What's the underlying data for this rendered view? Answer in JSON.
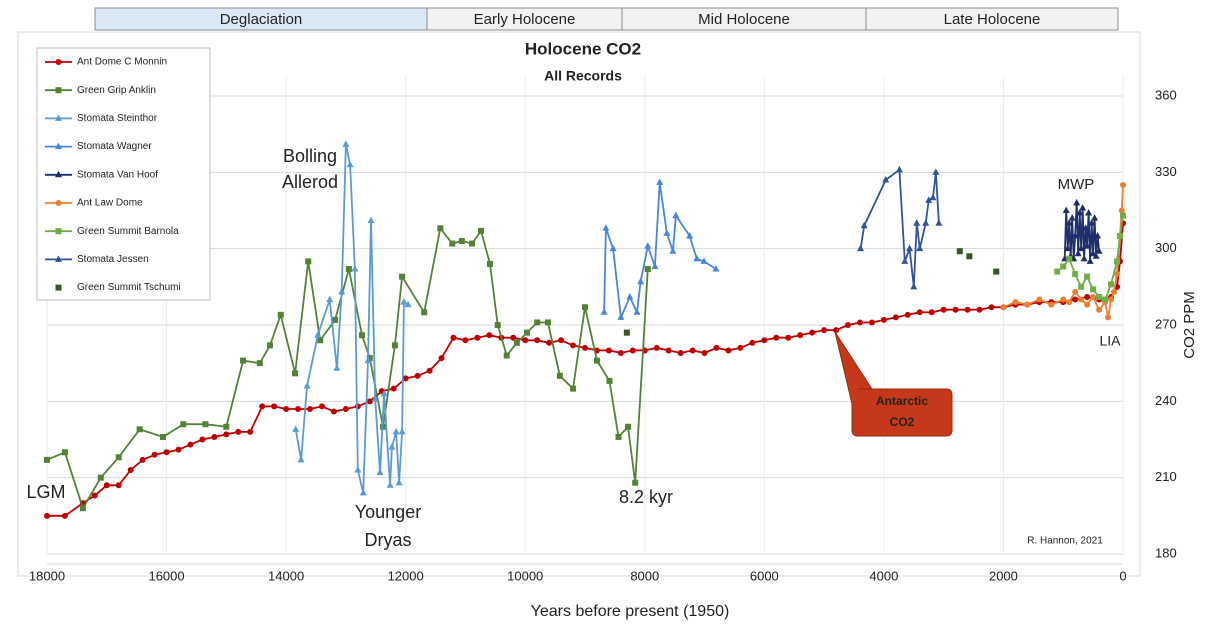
{
  "chart_data": {
    "type": "line",
    "title": "Holocene CO2",
    "subtitle": "All Records",
    "periods": [
      "Deglaciation",
      "Early Holocene",
      "Mid Holocene",
      "Late Holocene"
    ],
    "x_label": "Years before present (1950)",
    "y_label": "CO2 PPM",
    "xlim": [
      18000,
      0
    ],
    "xticks": [
      18000,
      16000,
      14000,
      12000,
      10000,
      8000,
      6000,
      4000,
      2000,
      0
    ],
    "ylim": [
      180,
      360
    ],
    "yticks": [
      180,
      210,
      240,
      270,
      300,
      330,
      360
    ],
    "grid": true,
    "legend": "upper left",
    "annotations": [
      {
        "lines": [
          "Bolling",
          "Allerod"
        ]
      },
      {
        "lines": [
          "LGM"
        ]
      },
      {
        "lines": [
          "Younger",
          "Dryas"
        ]
      },
      {
        "lines": [
          "8.2 kyr"
        ]
      },
      {
        "lines": [
          "MWP"
        ]
      },
      {
        "lines": [
          "LIA"
        ]
      },
      {
        "lines": [
          "Antarctic",
          "CO2"
        ]
      },
      {
        "lines": [
          "R. Hannon, 2021"
        ]
      }
    ],
    "series": [
      {
        "name": "Ant Dome C Monnin",
        "color": "#c00000",
        "marker": "circle",
        "line": true,
        "x": [
          18000,
          17700,
          17400,
          17200,
          17000,
          16800,
          16600,
          16400,
          16200,
          16000,
          15800,
          15600,
          15400,
          15200,
          15000,
          14800,
          14600,
          14400,
          14200,
          14000,
          13800,
          13600,
          13400,
          13200,
          13000,
          12800,
          12600,
          12400,
          12200,
          12000,
          11800,
          11600,
          11400,
          11200,
          11000,
          10800,
          10600,
          10400,
          10200,
          10000,
          9800,
          9600,
          9400,
          9200,
          9000,
          8800,
          8600,
          8400,
          8200,
          8000,
          7800,
          7600,
          7400,
          7200,
          7000,
          6800,
          6600,
          6400,
          6200,
          6000,
          5800,
          5600,
          5400,
          5200,
          5000,
          4800,
          4600,
          4400,
          4200,
          4000,
          3800,
          3600,
          3400,
          3200,
          3000,
          2800,
          2600,
          2400,
          2200,
          2000,
          1800,
          1600,
          1400,
          1200,
          1000,
          800,
          600,
          400,
          200,
          100,
          50,
          0
        ],
        "values": [
          195,
          195,
          200,
          203,
          207,
          207,
          213,
          217,
          219,
          220,
          221,
          223,
          225,
          226,
          227,
          228,
          228,
          238,
          238,
          237,
          237,
          237,
          238,
          236,
          237,
          238,
          240,
          244,
          245,
          249,
          250,
          252,
          257,
          265,
          264,
          265,
          266,
          265,
          265,
          264,
          264,
          263,
          264,
          262,
          261,
          260,
          260,
          259,
          260,
          260,
          261,
          260,
          259,
          260,
          259,
          261,
          260,
          261,
          263,
          264,
          265,
          265,
          266,
          267,
          268,
          268,
          270,
          271,
          271,
          272,
          273,
          274,
          275,
          275,
          276,
          276,
          276,
          276,
          277,
          277,
          278,
          278,
          279,
          279,
          279,
          280,
          281,
          280,
          281,
          285,
          295,
          310
        ]
      },
      {
        "name": "Green Grip Anklin",
        "color": "#548235",
        "marker": "square",
        "line": true,
        "x": [
          18000,
          17700,
          17400,
          17100,
          16800,
          16450,
          16060,
          15720,
          15350,
          15000,
          14720,
          14440,
          14270,
          14090,
          13850,
          13630,
          13430,
          13180,
          12950,
          12730,
          12600,
          12380,
          12180,
          12060,
          11690,
          11420,
          11220,
          11060,
          10890,
          10740,
          10590,
          10460,
          10310,
          10140,
          9970,
          9800,
          9620,
          9420,
          9200,
          9000,
          8800,
          8590,
          8440,
          8280,
          8160,
          7950
        ],
        "values": [
          217,
          220,
          198,
          210,
          218,
          229,
          226,
          231,
          231,
          230,
          256,
          255,
          262,
          274,
          251,
          295,
          264,
          272,
          292,
          266,
          257,
          230,
          262,
          289,
          275,
          308,
          302,
          303,
          302,
          307,
          294,
          270,
          258,
          263,
          267,
          271,
          271,
          250,
          245,
          277,
          256,
          248,
          226,
          230,
          208,
          292
        ]
      },
      {
        "name": "Stomata Steinthor",
        "color": "#5b9bd5",
        "marker": "triangle",
        "line": true,
        "x": [
          13840,
          13750,
          13650,
          13470,
          13270,
          13150,
          13070,
          13000,
          12930,
          12850,
          12800,
          12710,
          12630,
          12580,
          12510,
          12430,
          12360,
          12260,
          12230,
          12160,
          12110,
          12060,
          12030,
          11960
        ],
        "values": [
          229,
          217,
          246,
          266,
          280,
          253,
          283,
          341,
          333,
          292,
          213,
          204,
          256,
          311,
          241,
          212,
          243,
          207,
          222,
          228,
          208,
          228,
          279,
          278
        ]
      },
      {
        "name": "Stomata Wagner",
        "color": "#4a86d8",
        "marker": "triangle",
        "line": true,
        "x": [
          8680,
          8650,
          8530,
          8400,
          8250,
          8130,
          8070,
          7950,
          7830,
          7750,
          7630,
          7530,
          7480,
          7250,
          7130,
          7010,
          6810
        ],
        "values": [
          275,
          308,
          300,
          273,
          281,
          275,
          287,
          301,
          293,
          326,
          306,
          299,
          313,
          305,
          296,
          295,
          292
        ]
      },
      {
        "name": "Stomata Van Hoof",
        "color": "#1f2f6b",
        "marker": "triangle",
        "line": true,
        "x": [
          975,
          950,
          925,
          900,
          875,
          850,
          825,
          800,
          775,
          750,
          725,
          700,
          675,
          650,
          625,
          600,
          575,
          550,
          525,
          500,
          475,
          450,
          425,
          400
        ],
        "values": [
          296,
          315,
          300,
          310,
          297,
          312,
          296,
          305,
          318,
          298,
          314,
          300,
          316,
          296,
          308,
          301,
          314,
          295,
          310,
          298,
          312,
          297,
          305,
          299
        ]
      },
      {
        "name": "Ant Law Dome",
        "color": "#ed7d31",
        "marker": "circle",
        "line": true,
        "x": [
          2000,
          1800,
          1600,
          1400,
          1200,
          1000,
          900,
          800,
          700,
          600,
          500,
          400,
          300,
          250,
          200,
          150,
          100,
          50,
          20,
          0
        ],
        "values": [
          277,
          279,
          278,
          280,
          278,
          280,
          279,
          283,
          280,
          278,
          281,
          276,
          279,
          273,
          280,
          283,
          290,
          305,
          315,
          325
        ]
      },
      {
        "name": "Green Summit Barnola",
        "color": "#70ad47",
        "marker": "square",
        "line": true,
        "x": [
          1100,
          1000,
          900,
          800,
          700,
          600,
          500,
          400,
          300,
          200,
          100,
          50,
          0
        ],
        "values": [
          291,
          293,
          296,
          290,
          285,
          289,
          284,
          281,
          280,
          286,
          295,
          305,
          313
        ]
      },
      {
        "name": "Stomata Jessen",
        "color": "#2f5597",
        "marker": "triangle",
        "line": true,
        "x": [
          4390,
          4330,
          3970,
          3740,
          3650,
          3570,
          3500,
          3450,
          3400,
          3300,
          3250,
          3180,
          3130,
          3080
        ],
        "values": [
          300,
          309,
          327,
          331,
          295,
          300,
          285,
          310,
          300,
          310,
          319,
          320,
          330,
          310
        ]
      },
      {
        "name": "Green Summit Tschumi",
        "color": "#375623",
        "marker": "square",
        "line": false,
        "x": [
          8300,
          2730,
          2570,
          2120
        ],
        "values": [
          267,
          299,
          297,
          291
        ]
      }
    ]
  }
}
